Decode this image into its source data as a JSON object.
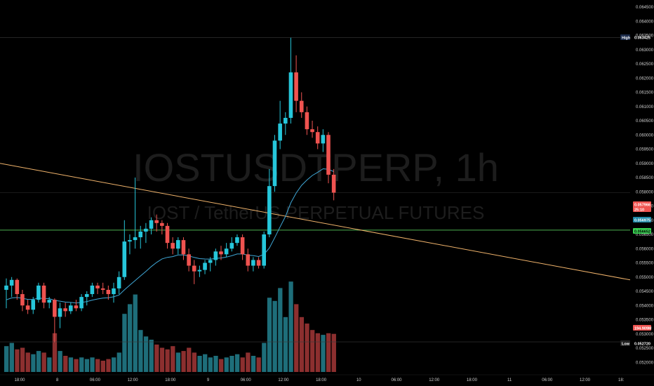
{
  "watermark": {
    "symbol": "IOSTUSDTPERP, 1h",
    "description": "IOST / TetherUS PERPETUAL FUTURES"
  },
  "price_axis": {
    "ticks": [
      "0.064500",
      "0.064000",
      "0.063500",
      "0.063000",
      "0.062500",
      "0.062000",
      "0.061500",
      "0.061000",
      "0.060500",
      "0.060000",
      "0.059500",
      "0.059000",
      "0.058500",
      "0.058000",
      "0.057500",
      "0.057000",
      "0.056500",
      "0.056000",
      "0.055500",
      "0.055000",
      "0.054500",
      "0.054000",
      "0.053500",
      "0.053000",
      "0.052500",
      "0.052000"
    ]
  },
  "time_axis": {
    "labels": [
      "18:00",
      "8",
      "06:00",
      "12:00",
      "18:00",
      "9",
      "06:00",
      "12:00",
      "18:00",
      "10",
      "06:00",
      "12:00",
      "18:00",
      "11",
      "06:00",
      "12:00",
      "18:"
    ]
  },
  "tags": {
    "high_label": "High",
    "high_value": "0.063425",
    "last_value": "0.057966",
    "last_countdown": "25:10",
    "ema_value": "0.056975",
    "support_value": "0.056652",
    "volume_value": "194.909M",
    "low_label": "Low",
    "low_value": "0.052720"
  },
  "colors": {
    "background": "#000000",
    "up": "#26c6da",
    "down": "#ef5350",
    "vol_up": "#1e6e7a",
    "vol_down": "#8c2f2f",
    "ema": "#3fa7d6",
    "trendline": "#f0b36b",
    "support": "#4caf50",
    "high_tag_bg": "#1a2a4a",
    "low_tag_bg": "#222222"
  },
  "chart_data": {
    "type": "candlestick",
    "timeframe": "1h",
    "title": "IOSTUSDTPERP, 1h",
    "ylim": [
      0.0518,
      0.065
    ],
    "candles": [
      {
        "o": 0.05455,
        "h": 0.05495,
        "l": 0.0539,
        "c": 0.0547,
        "v": 80
      },
      {
        "o": 0.0547,
        "h": 0.055,
        "l": 0.0543,
        "c": 0.0549,
        "v": 90
      },
      {
        "o": 0.0549,
        "h": 0.05495,
        "l": 0.0542,
        "c": 0.0544,
        "v": 70
      },
      {
        "o": 0.0544,
        "h": 0.05455,
        "l": 0.0538,
        "c": 0.054,
        "v": 75
      },
      {
        "o": 0.054,
        "h": 0.0542,
        "l": 0.0537,
        "c": 0.05385,
        "v": 60
      },
      {
        "o": 0.05385,
        "h": 0.0543,
        "l": 0.0537,
        "c": 0.0542,
        "v": 55
      },
      {
        "o": 0.0542,
        "h": 0.0548,
        "l": 0.0541,
        "c": 0.0547,
        "v": 65
      },
      {
        "o": 0.0547,
        "h": 0.0548,
        "l": 0.0539,
        "c": 0.0541,
        "v": 60
      },
      {
        "o": 0.0541,
        "h": 0.0543,
        "l": 0.0539,
        "c": 0.0542,
        "v": 45
      },
      {
        "o": 0.0542,
        "h": 0.05425,
        "l": 0.0527,
        "c": 0.0536,
        "v": 120
      },
      {
        "o": 0.0536,
        "h": 0.0541,
        "l": 0.0532,
        "c": 0.0539,
        "v": 65
      },
      {
        "o": 0.0539,
        "h": 0.0541,
        "l": 0.0536,
        "c": 0.0538,
        "v": 50
      },
      {
        "o": 0.0538,
        "h": 0.0541,
        "l": 0.0537,
        "c": 0.054,
        "v": 45
      },
      {
        "o": 0.054,
        "h": 0.0542,
        "l": 0.0538,
        "c": 0.0539,
        "v": 40
      },
      {
        "o": 0.0539,
        "h": 0.0544,
        "l": 0.0538,
        "c": 0.0543,
        "v": 45
      },
      {
        "o": 0.0543,
        "h": 0.0545,
        "l": 0.054,
        "c": 0.0544,
        "v": 40
      },
      {
        "o": 0.0544,
        "h": 0.0548,
        "l": 0.0543,
        "c": 0.0547,
        "v": 45
      },
      {
        "o": 0.0547,
        "h": 0.0548,
        "l": 0.0544,
        "c": 0.0546,
        "v": 40
      },
      {
        "o": 0.0546,
        "h": 0.0548,
        "l": 0.0544,
        "c": 0.05455,
        "v": 35
      },
      {
        "o": 0.05455,
        "h": 0.0547,
        "l": 0.0542,
        "c": 0.0544,
        "v": 40
      },
      {
        "o": 0.0544,
        "h": 0.0548,
        "l": 0.0541,
        "c": 0.0546,
        "v": 45
      },
      {
        "o": 0.0546,
        "h": 0.0552,
        "l": 0.0544,
        "c": 0.055,
        "v": 60
      },
      {
        "o": 0.055,
        "h": 0.057,
        "l": 0.0549,
        "c": 0.05625,
        "v": 180
      },
      {
        "o": 0.05625,
        "h": 0.0565,
        "l": 0.0558,
        "c": 0.0563,
        "v": 210
      },
      {
        "o": 0.0563,
        "h": 0.0585,
        "l": 0.056,
        "c": 0.0564,
        "v": 240
      },
      {
        "o": 0.0564,
        "h": 0.0568,
        "l": 0.056,
        "c": 0.0566,
        "v": 130
      },
      {
        "o": 0.0566,
        "h": 0.0569,
        "l": 0.0562,
        "c": 0.0567,
        "v": 110
      },
      {
        "o": 0.0567,
        "h": 0.0571,
        "l": 0.0565,
        "c": 0.057,
        "v": 100
      },
      {
        "o": 0.057,
        "h": 0.0572,
        "l": 0.0566,
        "c": 0.0569,
        "v": 85
      },
      {
        "o": 0.0569,
        "h": 0.057,
        "l": 0.0565,
        "c": 0.0568,
        "v": 75
      },
      {
        "o": 0.0568,
        "h": 0.0569,
        "l": 0.056,
        "c": 0.0562,
        "v": 70
      },
      {
        "o": 0.0562,
        "h": 0.0564,
        "l": 0.0558,
        "c": 0.056,
        "v": 80
      },
      {
        "o": 0.056,
        "h": 0.0564,
        "l": 0.0558,
        "c": 0.0563,
        "v": 60
      },
      {
        "o": 0.0563,
        "h": 0.0564,
        "l": 0.0556,
        "c": 0.0558,
        "v": 65
      },
      {
        "o": 0.0558,
        "h": 0.056,
        "l": 0.0552,
        "c": 0.0554,
        "v": 75
      },
      {
        "o": 0.0554,
        "h": 0.0556,
        "l": 0.05475,
        "c": 0.0552,
        "v": 60
      },
      {
        "o": 0.0552,
        "h": 0.0554,
        "l": 0.055,
        "c": 0.05525,
        "v": 50
      },
      {
        "o": 0.05525,
        "h": 0.0556,
        "l": 0.0551,
        "c": 0.0555,
        "v": 55
      },
      {
        "o": 0.0555,
        "h": 0.0557,
        "l": 0.0552,
        "c": 0.0556,
        "v": 45
      },
      {
        "o": 0.0556,
        "h": 0.056,
        "l": 0.0554,
        "c": 0.0559,
        "v": 50
      },
      {
        "o": 0.0559,
        "h": 0.0561,
        "l": 0.0556,
        "c": 0.0558,
        "v": 40
      },
      {
        "o": 0.0558,
        "h": 0.0562,
        "l": 0.0557,
        "c": 0.056,
        "v": 45
      },
      {
        "o": 0.056,
        "h": 0.0564,
        "l": 0.0559,
        "c": 0.0562,
        "v": 50
      },
      {
        "o": 0.0562,
        "h": 0.0565,
        "l": 0.0561,
        "c": 0.0564,
        "v": 55
      },
      {
        "o": 0.0564,
        "h": 0.0565,
        "l": 0.0556,
        "c": 0.0558,
        "v": 45
      },
      {
        "o": 0.0558,
        "h": 0.056,
        "l": 0.0552,
        "c": 0.0554,
        "v": 60
      },
      {
        "o": 0.0554,
        "h": 0.0557,
        "l": 0.0552,
        "c": 0.0556,
        "v": 50
      },
      {
        "o": 0.0556,
        "h": 0.0557,
        "l": 0.0553,
        "c": 0.0554,
        "v": 45
      },
      {
        "o": 0.0554,
        "h": 0.0566,
        "l": 0.0553,
        "c": 0.0565,
        "v": 90
      },
      {
        "o": 0.0565,
        "h": 0.0588,
        "l": 0.0564,
        "c": 0.0582,
        "v": 230
      },
      {
        "o": 0.0582,
        "h": 0.06,
        "l": 0.058,
        "c": 0.0598,
        "v": 220
      },
      {
        "o": 0.0598,
        "h": 0.0612,
        "l": 0.0595,
        "c": 0.0604,
        "v": 260
      },
      {
        "o": 0.0604,
        "h": 0.0608,
        "l": 0.06,
        "c": 0.0606,
        "v": 170
      },
      {
        "o": 0.0606,
        "h": 0.06342,
        "l": 0.0604,
        "c": 0.0622,
        "v": 280
      },
      {
        "o": 0.0622,
        "h": 0.0628,
        "l": 0.0608,
        "c": 0.0612,
        "v": 210
      },
      {
        "o": 0.0612,
        "h": 0.0615,
        "l": 0.0606,
        "c": 0.0608,
        "v": 170
      },
      {
        "o": 0.0608,
        "h": 0.061,
        "l": 0.06,
        "c": 0.0602,
        "v": 150
      },
      {
        "o": 0.0602,
        "h": 0.0605,
        "l": 0.0599,
        "c": 0.0601,
        "v": 130
      },
      {
        "o": 0.0601,
        "h": 0.0603,
        "l": 0.0595,
        "c": 0.0597,
        "v": 120
      },
      {
        "o": 0.0597,
        "h": 0.0602,
        "l": 0.0594,
        "c": 0.06,
        "v": 115
      },
      {
        "o": 0.06,
        "h": 0.0601,
        "l": 0.0583,
        "c": 0.0586,
        "v": 120
      },
      {
        "o": 0.0586,
        "h": 0.0588,
        "l": 0.0577,
        "c": 0.05797,
        "v": 118
      }
    ],
    "indicators": {
      "ema_last": 0.056975,
      "trendline": {
        "from": [
          0,
          0.059
        ],
        "to": [
          130,
          0.0549
        ]
      },
      "horizontal_levels": [
        0.063425,
        0.056652,
        0.05272
      ]
    }
  }
}
